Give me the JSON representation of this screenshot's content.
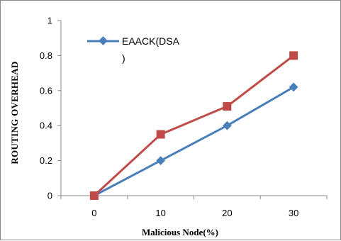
{
  "chart_data": {
    "type": "line",
    "title": "",
    "xlabel": "Malicious Node(%)",
    "ylabel": "ROUTING OVERHEAD",
    "categories": [
      "0",
      "10",
      "20",
      "30"
    ],
    "ylim": [
      0,
      1
    ],
    "yticks": [
      "0",
      "0.2",
      "0.4",
      "0.6",
      "0.8",
      "1"
    ],
    "grid": false,
    "legend_position": "top-left",
    "series": [
      {
        "name": "EAACK(DSA)",
        "legend_lines": [
          "EAACK(DSA",
          ")"
        ],
        "values": [
          0,
          0.2,
          0.4,
          0.62
        ],
        "color": "#4a7ebb",
        "marker": "diamond"
      },
      {
        "values": [
          0,
          0.35,
          0.51,
          0.8
        ],
        "color": "#be4b48",
        "marker": "square"
      }
    ]
  }
}
